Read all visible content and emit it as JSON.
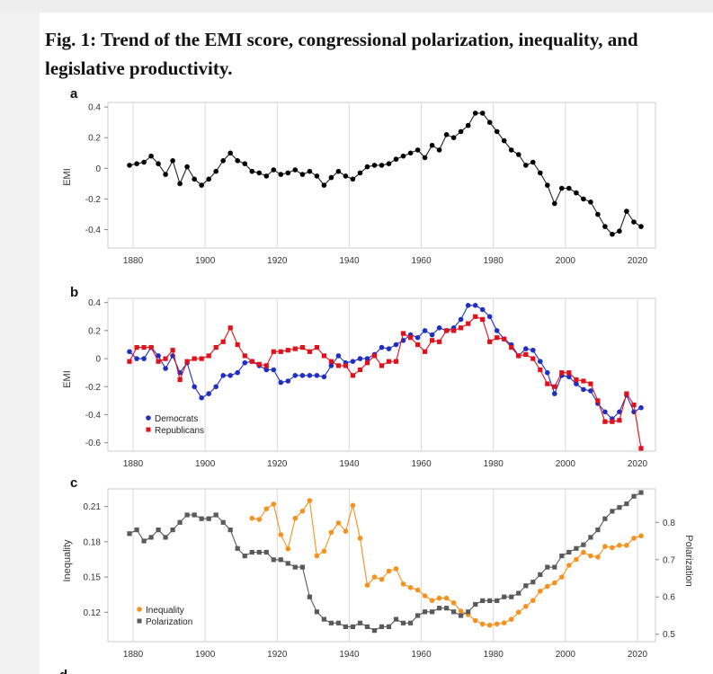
{
  "figure": {
    "title": "Fig. 1: Trend of the EMI score, congressional polarization, inequality, and legislative productivity."
  },
  "colors": {
    "emi": "#000000",
    "democrats": "#1f2fbf",
    "republicans": "#e0111b",
    "inequality": "#f5921e",
    "polarization": "#5a5a5a",
    "grid": "#d9d9d9"
  },
  "chart_data": [
    {
      "type": "line",
      "panel_label": "a",
      "ylabel": "EMI",
      "xlim": [
        1873,
        2025
      ],
      "ylim": [
        -0.52,
        0.43
      ],
      "xticks": [
        1880,
        1900,
        1920,
        1940,
        1960,
        1980,
        2000,
        2020
      ],
      "yticks": [
        -0.4,
        -0.2,
        0,
        0.2,
        0.4
      ],
      "ytick_labels": [
        "-0.4",
        "-0.2",
        "0",
        "0.2",
        "0.4"
      ],
      "series": [
        {
          "name": "",
          "x": [
            1879,
            1881,
            1883,
            1885,
            1887,
            1889,
            1891,
            1893,
            1895,
            1897,
            1899,
            1901,
            1903,
            1905,
            1907,
            1909,
            1911,
            1913,
            1915,
            1917,
            1919,
            1921,
            1923,
            1925,
            1927,
            1929,
            1931,
            1933,
            1935,
            1937,
            1939,
            1941,
            1943,
            1945,
            1947,
            1949,
            1951,
            1953,
            1955,
            1957,
            1959,
            1961,
            1963,
            1965,
            1967,
            1969,
            1971,
            1973,
            1975,
            1977,
            1979,
            1981,
            1983,
            1985,
            1987,
            1989,
            1991,
            1993,
            1995,
            1997,
            1999,
            2001,
            2003,
            2005,
            2007,
            2009,
            2011,
            2013,
            2015,
            2017,
            2019,
            2021
          ],
          "y": [
            0.02,
            0.03,
            0.04,
            0.08,
            0.03,
            -0.04,
            0.05,
            -0.1,
            0.01,
            -0.07,
            -0.11,
            -0.07,
            -0.02,
            0.05,
            0.1,
            0.05,
            0.03,
            -0.02,
            -0.03,
            -0.05,
            -0.01,
            -0.04,
            -0.03,
            -0.01,
            -0.04,
            -0.02,
            -0.05,
            -0.11,
            -0.06,
            -0.02,
            -0.05,
            -0.07,
            -0.03,
            0.01,
            0.02,
            0.02,
            0.03,
            0.06,
            0.08,
            0.1,
            0.12,
            0.07,
            0.15,
            0.12,
            0.22,
            0.2,
            0.24,
            0.28,
            0.36,
            0.36,
            0.3,
            0.24,
            0.18,
            0.12,
            0.09,
            0.02,
            0.04,
            -0.03,
            -0.11,
            -0.23,
            -0.13,
            -0.13,
            -0.16,
            -0.2,
            -0.22,
            -0.3,
            -0.38,
            -0.43,
            -0.41,
            -0.28,
            -0.35,
            -0.38
          ]
        }
      ]
    },
    {
      "type": "line",
      "panel_label": "b",
      "ylabel": "EMI",
      "xlim": [
        1873,
        2025
      ],
      "ylim": [
        -0.66,
        0.43
      ],
      "xticks": [
        1880,
        1900,
        1920,
        1940,
        1960,
        1980,
        2000,
        2020
      ],
      "yticks": [
        -0.6,
        -0.4,
        -0.2,
        0,
        0.2,
        0.4
      ],
      "ytick_labels": [
        "-0.6",
        "-0.4",
        "-0.2",
        "0",
        "0.2",
        "0.4"
      ],
      "legend": {
        "position": "bottom-left"
      },
      "series": [
        {
          "name": "Democrats",
          "x": [
            1879,
            1881,
            1883,
            1885,
            1887,
            1889,
            1891,
            1893,
            1895,
            1897,
            1899,
            1901,
            1903,
            1905,
            1907,
            1909,
            1911,
            1913,
            1915,
            1917,
            1919,
            1921,
            1923,
            1925,
            1927,
            1929,
            1931,
            1933,
            1935,
            1937,
            1939,
            1941,
            1943,
            1945,
            1947,
            1949,
            1951,
            1953,
            1955,
            1957,
            1959,
            1961,
            1963,
            1965,
            1967,
            1969,
            1971,
            1973,
            1975,
            1977,
            1979,
            1981,
            1983,
            1985,
            1987,
            1989,
            1991,
            1993,
            1995,
            1997,
            1999,
            2001,
            2003,
            2005,
            2007,
            2009,
            2011,
            2013,
            2015,
            2017,
            2019,
            2021
          ],
          "y": [
            0.05,
            0.0,
            0.0,
            0.08,
            0.02,
            -0.07,
            0.02,
            -0.1,
            -0.03,
            -0.2,
            -0.28,
            -0.25,
            -0.2,
            -0.12,
            -0.12,
            -0.1,
            -0.03,
            -0.02,
            -0.05,
            -0.08,
            -0.08,
            -0.17,
            -0.16,
            -0.12,
            -0.12,
            -0.12,
            -0.12,
            -0.13,
            -0.05,
            0.02,
            -0.03,
            -0.02,
            0.0,
            0.0,
            0.03,
            0.08,
            0.07,
            0.1,
            0.13,
            0.17,
            0.15,
            0.2,
            0.17,
            0.22,
            0.2,
            0.22,
            0.28,
            0.38,
            0.38,
            0.35,
            0.3,
            0.2,
            0.14,
            0.1,
            0.02,
            0.07,
            0.06,
            -0.02,
            -0.1,
            -0.25,
            -0.12,
            -0.13,
            -0.18,
            -0.22,
            -0.23,
            -0.32,
            -0.38,
            -0.43,
            -0.38,
            -0.26,
            -0.38,
            -0.35
          ]
        },
        {
          "name": "Republicans",
          "x": [
            1879,
            1881,
            1883,
            1885,
            1887,
            1889,
            1891,
            1893,
            1895,
            1897,
            1899,
            1901,
            1903,
            1905,
            1907,
            1909,
            1911,
            1913,
            1915,
            1917,
            1919,
            1921,
            1923,
            1925,
            1927,
            1929,
            1931,
            1933,
            1935,
            1937,
            1939,
            1941,
            1943,
            1945,
            1947,
            1949,
            1951,
            1953,
            1955,
            1957,
            1959,
            1961,
            1963,
            1965,
            1967,
            1969,
            1971,
            1973,
            1975,
            1977,
            1979,
            1981,
            1983,
            1985,
            1987,
            1989,
            1991,
            1993,
            1995,
            1997,
            1999,
            2001,
            2003,
            2005,
            2007,
            2009,
            2011,
            2013,
            2015,
            2017,
            2019,
            2021
          ],
          "y": [
            -0.02,
            0.08,
            0.08,
            0.08,
            -0.02,
            0.0,
            0.06,
            -0.15,
            -0.02,
            0.0,
            0.0,
            0.02,
            0.08,
            0.12,
            0.22,
            0.1,
            0.02,
            -0.02,
            -0.04,
            -0.05,
            0.05,
            0.05,
            0.06,
            0.07,
            0.08,
            0.05,
            0.08,
            0.02,
            -0.02,
            -0.05,
            -0.05,
            -0.12,
            -0.08,
            -0.03,
            0.02,
            -0.05,
            -0.02,
            -0.02,
            0.18,
            0.15,
            0.1,
            0.05,
            0.13,
            0.12,
            0.2,
            0.2,
            0.22,
            0.25,
            0.3,
            0.28,
            0.12,
            0.15,
            0.14,
            0.08,
            0.02,
            0.03,
            0.0,
            -0.08,
            -0.18,
            -0.2,
            -0.1,
            -0.1,
            -0.15,
            -0.16,
            -0.18,
            -0.3,
            -0.45,
            -0.45,
            -0.44,
            -0.25,
            -0.33,
            -0.64
          ]
        }
      ]
    },
    {
      "type": "line",
      "panel_label": "c",
      "ylabel": "Inequality",
      "y2label": "Polarization",
      "xlim": [
        1873,
        2025
      ],
      "ylim": [
        0.095,
        0.225
      ],
      "y2lim": [
        0.48,
        0.89
      ],
      "xticks": [
        1880,
        1900,
        1920,
        1940,
        1960,
        1980,
        2000,
        2020
      ],
      "yticks": [
        0.12,
        0.15,
        0.18,
        0.21
      ],
      "ytick_labels": [
        "0.12",
        "0.15",
        "0.18",
        "0.21"
      ],
      "y2ticks": [
        0.5,
        0.6,
        0.7,
        0.8
      ],
      "y2tick_labels": [
        "0.5",
        "0.6",
        "0.7",
        "0.8"
      ],
      "legend": {
        "position": "bottom-left"
      },
      "series": [
        {
          "name": "Inequality",
          "axis": "left",
          "x": [
            1913,
            1915,
            1917,
            1919,
            1921,
            1923,
            1925,
            1927,
            1929,
            1931,
            1933,
            1935,
            1937,
            1939,
            1941,
            1943,
            1945,
            1947,
            1949,
            1951,
            1953,
            1955,
            1957,
            1959,
            1961,
            1963,
            1965,
            1967,
            1969,
            1971,
            1973,
            1975,
            1977,
            1979,
            1981,
            1983,
            1985,
            1987,
            1989,
            1991,
            1993,
            1995,
            1997,
            1999,
            2001,
            2003,
            2005,
            2007,
            2009,
            2011,
            2013,
            2015,
            2017,
            2019,
            2021
          ],
          "y": [
            0.2,
            0.199,
            0.208,
            0.212,
            0.186,
            0.174,
            0.2,
            0.206,
            0.215,
            0.168,
            0.172,
            0.188,
            0.196,
            0.189,
            0.211,
            0.183,
            0.143,
            0.15,
            0.148,
            0.155,
            0.157,
            0.144,
            0.141,
            0.139,
            0.134,
            0.13,
            0.132,
            0.132,
            0.128,
            0.121,
            0.118,
            0.113,
            0.11,
            0.109,
            0.11,
            0.111,
            0.114,
            0.12,
            0.125,
            0.13,
            0.138,
            0.142,
            0.145,
            0.15,
            0.16,
            0.165,
            0.171,
            0.168,
            0.167,
            0.176,
            0.175,
            0.177,
            0.177,
            0.183,
            0.185
          ]
        },
        {
          "name": "Polarization",
          "axis": "right",
          "x": [
            1879,
            1881,
            1883,
            1885,
            1887,
            1889,
            1891,
            1893,
            1895,
            1897,
            1899,
            1901,
            1903,
            1905,
            1907,
            1909,
            1911,
            1913,
            1915,
            1917,
            1919,
            1921,
            1923,
            1925,
            1927,
            1929,
            1931,
            1933,
            1935,
            1937,
            1939,
            1941,
            1943,
            1945,
            1947,
            1949,
            1951,
            1953,
            1955,
            1957,
            1959,
            1961,
            1963,
            1965,
            1967,
            1969,
            1971,
            1973,
            1975,
            1977,
            1979,
            1981,
            1983,
            1985,
            1987,
            1989,
            1991,
            1993,
            1995,
            1997,
            1999,
            2001,
            2003,
            2005,
            2007,
            2009,
            2011,
            2013,
            2015,
            2017,
            2019,
            2021
          ],
          "y": [
            0.77,
            0.78,
            0.75,
            0.76,
            0.78,
            0.76,
            0.78,
            0.8,
            0.82,
            0.82,
            0.81,
            0.81,
            0.82,
            0.8,
            0.78,
            0.73,
            0.71,
            0.72,
            0.72,
            0.72,
            0.7,
            0.7,
            0.69,
            0.68,
            0.68,
            0.6,
            0.56,
            0.54,
            0.53,
            0.53,
            0.52,
            0.52,
            0.53,
            0.52,
            0.51,
            0.52,
            0.52,
            0.54,
            0.53,
            0.53,
            0.55,
            0.56,
            0.56,
            0.57,
            0.57,
            0.56,
            0.55,
            0.56,
            0.58,
            0.59,
            0.59,
            0.59,
            0.6,
            0.6,
            0.61,
            0.63,
            0.64,
            0.66,
            0.68,
            0.68,
            0.71,
            0.72,
            0.73,
            0.74,
            0.76,
            0.78,
            0.81,
            0.83,
            0.84,
            0.85,
            0.87,
            0.88
          ]
        }
      ]
    }
  ]
}
